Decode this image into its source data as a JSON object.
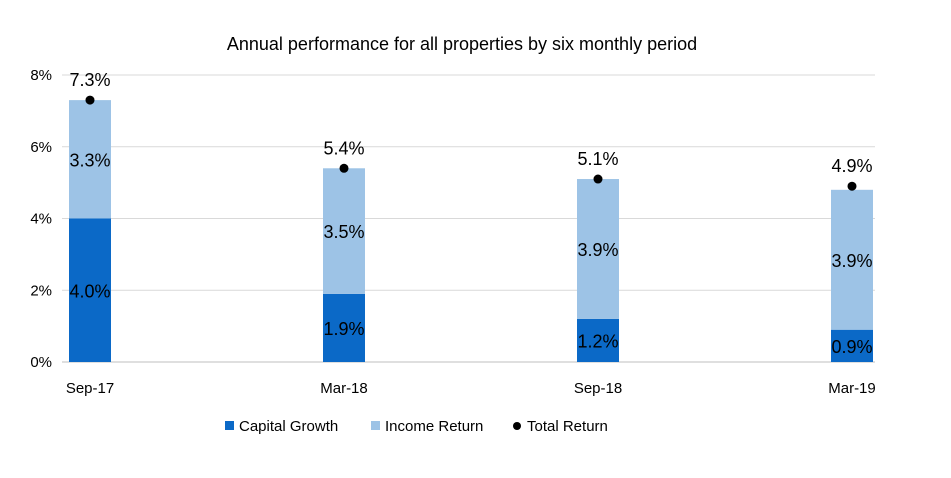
{
  "chart_data": {
    "type": "bar",
    "stacked": true,
    "title": "Annual performance for all properties by six monthly period",
    "categories": [
      "Sep-17",
      "Mar-18",
      "Sep-18",
      "Mar-19"
    ],
    "series": [
      {
        "name": "Capital Growth",
        "kind": "bar",
        "values": [
          4.0,
          1.9,
          1.2,
          0.9
        ],
        "labels": [
          "4.0%",
          "1.9%",
          "1.2%",
          "0.9%"
        ]
      },
      {
        "name": "Income Return",
        "kind": "bar",
        "values": [
          3.3,
          3.5,
          3.9,
          3.9
        ],
        "labels": [
          "3.3%",
          "3.5%",
          "3.9%",
          "3.9%"
        ]
      },
      {
        "name": "Total Return",
        "kind": "point",
        "values": [
          7.3,
          5.4,
          5.1,
          4.9
        ],
        "labels": [
          "7.3%",
          "5.4%",
          "5.1%",
          "4.9%"
        ]
      }
    ],
    "y_ticks": [
      0,
      2,
      4,
      6,
      8
    ],
    "y_tick_labels": [
      "0%",
      "2%",
      "4%",
      "6%",
      "8%"
    ],
    "ylim": [
      0,
      8
    ],
    "grid": true,
    "legend_position": "bottom",
    "colors": {
      "capital_growth": "#0b69c7",
      "income_return": "#9dc3e6",
      "total_return": "#000000",
      "gridline": "#d9d9d9",
      "axis": "#bfbfbf"
    }
  }
}
